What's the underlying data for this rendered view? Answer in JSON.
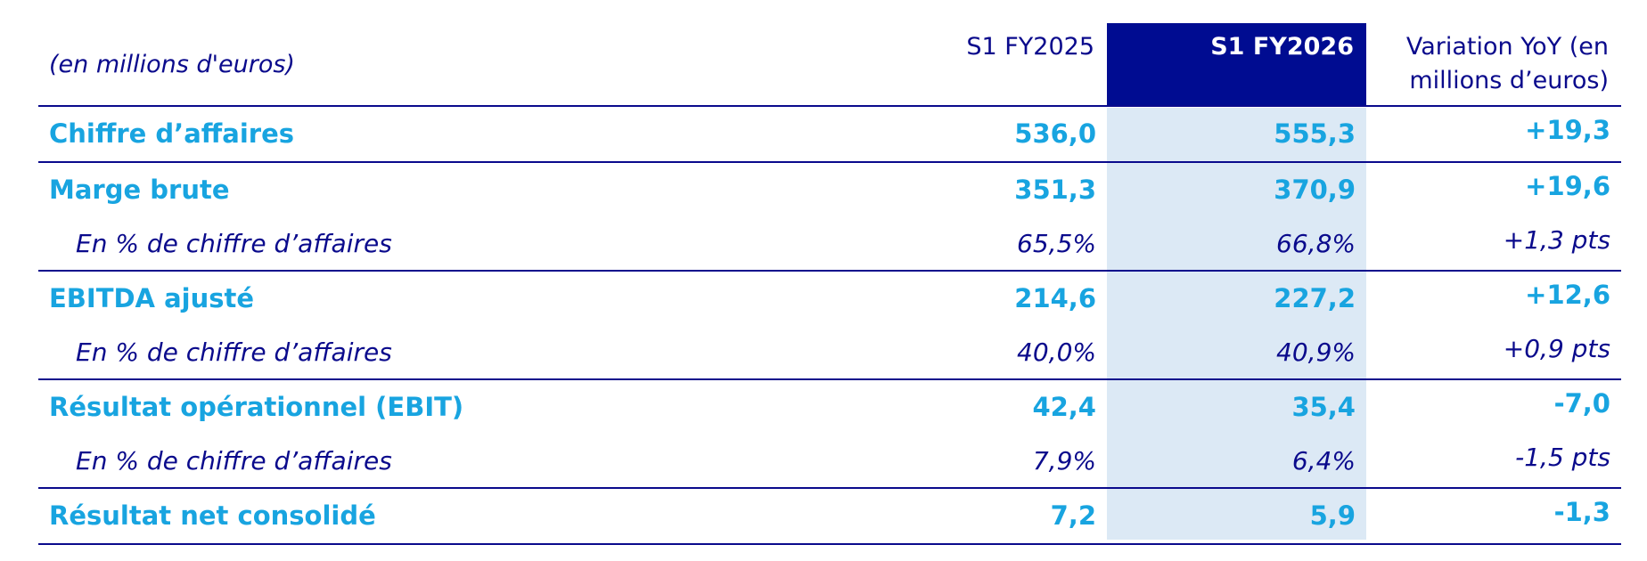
{
  "header": {
    "label": "(en millions d'euros)",
    "columns": [
      "S1 FY2025",
      "S1 FY2026",
      "Variation YoY (en millions d’euros)"
    ]
  },
  "groups": [
    {
      "label": "Chiffre d’affaires",
      "values": [
        "536,0",
        "555,3",
        "+19,3"
      ]
    },
    {
      "label": "Marge brute",
      "values": [
        "351,3",
        "370,9",
        "+19,6"
      ],
      "sub": {
        "label": "En % de chiffre d’affaires",
        "values": [
          "65,5%",
          "66,8%",
          "+1,3 pts"
        ]
      }
    },
    {
      "label": "EBITDA ajusté",
      "values": [
        "214,6",
        "227,2",
        "+12,6"
      ],
      "sub": {
        "label": "En % de chiffre d’affaires",
        "values": [
          "40,0%",
          "40,9%",
          "+0,9 pts"
        ]
      }
    },
    {
      "label": "Résultat opérationnel (EBIT)",
      "values": [
        "42,4",
        "35,4",
        "-7,0"
      ],
      "sub": {
        "label": "En % de chiffre d’affaires",
        "values": [
          "7,9%",
          "6,4%",
          "-1,5 pts"
        ]
      }
    },
    {
      "label": "Résultat net consolidé",
      "values": [
        "7,2",
        "5,9",
        "-1,3"
      ]
    }
  ]
}
